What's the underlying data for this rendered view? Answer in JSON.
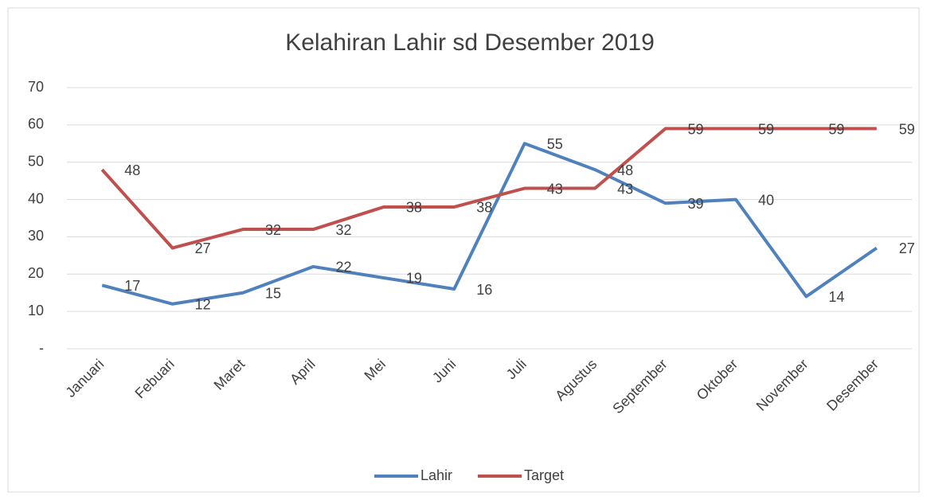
{
  "chart_data": {
    "type": "line",
    "title": "Kelahiran Lahir sd Desember 2019",
    "categories": [
      "Januari",
      "Febuari",
      "Maret",
      "April",
      "Mei",
      "Juni",
      "Juli",
      "Agustus",
      "September",
      "Oktober",
      "November",
      "Desember"
    ],
    "series": [
      {
        "name": "Lahir",
        "color": "#4f81bd",
        "values": [
          17,
          12,
          15,
          22,
          19,
          16,
          55,
          48,
          39,
          40,
          14,
          27
        ]
      },
      {
        "name": "Target",
        "color": "#c0504d",
        "values": [
          48,
          27,
          32,
          32,
          38,
          38,
          43,
          43,
          59,
          59,
          59,
          59
        ]
      }
    ],
    "ylim": [
      0,
      70
    ],
    "yticks": [
      {
        "value": 0,
        "label": "-"
      },
      10,
      20,
      30,
      40,
      50,
      60,
      70
    ],
    "grid": true,
    "legend": "bottom"
  }
}
